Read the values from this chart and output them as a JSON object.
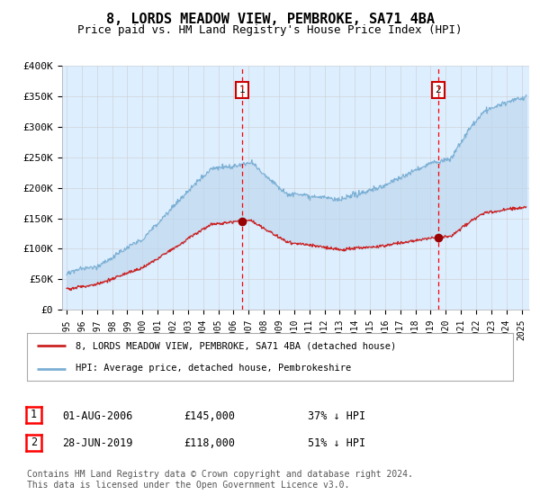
{
  "title": "8, LORDS MEADOW VIEW, PEMBROKE, SA71 4BA",
  "subtitle": "Price paid vs. HM Land Registry's House Price Index (HPI)",
  "plot_bg_color": "#ddeeff",
  "ylabel_ticks": [
    "£0",
    "£50K",
    "£100K",
    "£150K",
    "£200K",
    "£250K",
    "£300K",
    "£350K",
    "£400K"
  ],
  "ytick_values": [
    0,
    50000,
    100000,
    150000,
    200000,
    250000,
    300000,
    350000,
    400000
  ],
  "ylim": [
    0,
    400000
  ],
  "xlim_start": 1994.7,
  "xlim_end": 2025.5,
  "xtick_years": [
    1995,
    1996,
    1997,
    1998,
    1999,
    2000,
    2001,
    2002,
    2003,
    2004,
    2005,
    2006,
    2007,
    2008,
    2009,
    2010,
    2011,
    2012,
    2013,
    2014,
    2015,
    2016,
    2017,
    2018,
    2019,
    2020,
    2021,
    2022,
    2023,
    2024,
    2025
  ],
  "hpi_color": "#7aafd4",
  "price_color": "#cc2222",
  "fill_color": "#c8ddf0",
  "marker1_year": 2006.58,
  "marker1_price": 145000,
  "marker2_year": 2019.5,
  "marker2_price": 118000,
  "legend_label_red": "8, LORDS MEADOW VIEW, PEMBROKE, SA71 4BA (detached house)",
  "legend_label_blue": "HPI: Average price, detached house, Pembrokeshire",
  "footnote": "Contains HM Land Registry data © Crown copyright and database right 2024.\nThis data is licensed under the Open Government Licence v3.0.",
  "grid_color": "#cccccc",
  "title_fontsize": 11,
  "subtitle_fontsize": 9
}
